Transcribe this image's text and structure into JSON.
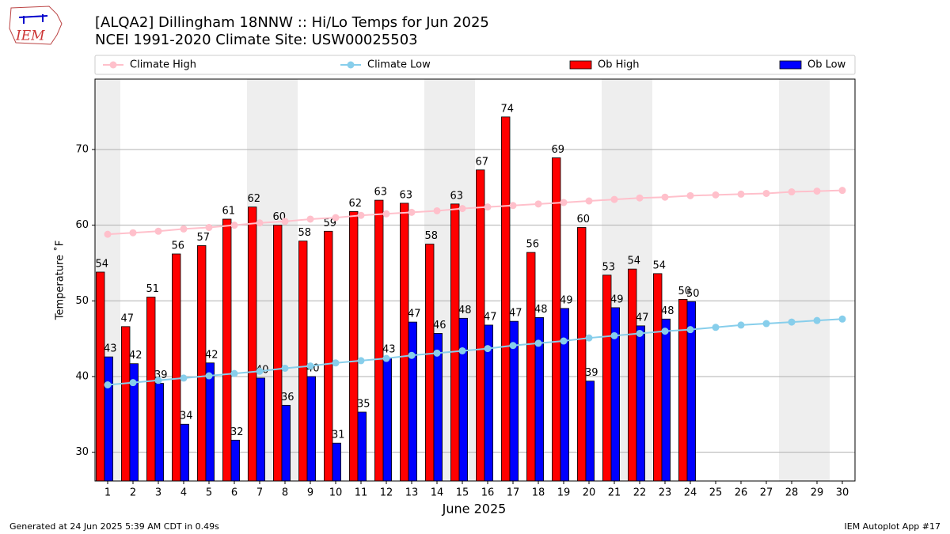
{
  "chart_data": {
    "type": "bar",
    "title": "[ALQA2] Dillingham 18NNW :: Hi/Lo Temps for Jun 2025",
    "subtitle": "NCEI 1991-2020 Climate Site: USW00025503",
    "xlabel": "June 2025",
    "ylabel": "Temperature ˚F",
    "logo": "IEM",
    "footer_left": "Generated at 24 Jun 2025 5:39 AM CDT in 0.49s",
    "footer_right": "IEM Autoplot App #17",
    "categories": [
      "1",
      "2",
      "3",
      "4",
      "5",
      "6",
      "7",
      "8",
      "9",
      "10",
      "11",
      "12",
      "13",
      "14",
      "15",
      "16",
      "17",
      "18",
      "19",
      "20",
      "21",
      "22",
      "23",
      "24",
      "25",
      "26",
      "27",
      "28",
      "29",
      "30"
    ],
    "ylim": [
      26.2,
      79.3
    ],
    "yticks": [
      30,
      40,
      50,
      60,
      70
    ],
    "grid": true,
    "series": [
      {
        "name": "Climate High",
        "type": "line",
        "color": "#ffc0cb",
        "values": [
          58.8,
          59.0,
          59.2,
          59.5,
          59.7,
          60.0,
          60.3,
          60.5,
          60.8,
          61.0,
          61.3,
          61.5,
          61.7,
          61.9,
          62.2,
          62.4,
          62.6,
          62.8,
          63.0,
          63.2,
          63.4,
          63.6,
          63.7,
          63.9,
          64.0,
          64.1,
          64.2,
          64.4,
          64.5,
          64.6
        ]
      },
      {
        "name": "Climate Low",
        "type": "line",
        "color": "#87ceeb",
        "values": [
          38.9,
          39.2,
          39.5,
          39.8,
          40.1,
          40.4,
          40.7,
          41.1,
          41.4,
          41.8,
          42.1,
          42.4,
          42.8,
          43.1,
          43.4,
          43.7,
          44.1,
          44.4,
          44.7,
          45.1,
          45.4,
          45.7,
          46.0,
          46.2,
          46.5,
          46.8,
          47.0,
          47.2,
          47.4,
          47.6
        ]
      },
      {
        "name": "Ob High",
        "type": "bar",
        "color": "#ff0000",
        "values": [
          53.8,
          46.6,
          50.5,
          56.2,
          57.3,
          60.8,
          62.4,
          60.0,
          57.9,
          59.2,
          61.8,
          63.3,
          62.9,
          57.5,
          62.8,
          67.3,
          74.3,
          56.4,
          68.9,
          59.7,
          53.4,
          54.2,
          53.6,
          50.2,
          null,
          null,
          null,
          null,
          null,
          null
        ],
        "value_labels": [
          "54",
          "47",
          "51",
          "56",
          "57",
          "61",
          "62",
          "60",
          "58",
          "59",
          "62",
          "63",
          "63",
          "58",
          "63",
          "67",
          "74",
          "56",
          "69",
          "60",
          "53",
          "54",
          "54",
          "50",
          null,
          null,
          null,
          null,
          null,
          null
        ]
      },
      {
        "name": "Ob Low",
        "type": "bar",
        "color": "#0000ff",
        "values": [
          42.6,
          41.7,
          39.1,
          33.7,
          41.8,
          31.6,
          39.8,
          36.2,
          40.0,
          31.2,
          35.3,
          42.5,
          47.2,
          45.7,
          47.7,
          46.8,
          47.3,
          47.8,
          49.0,
          39.4,
          49.1,
          46.7,
          47.6,
          49.9,
          null,
          null,
          null,
          null,
          null,
          null
        ],
        "value_labels": [
          "43",
          "42",
          "39",
          "34",
          "42",
          "32",
          "40",
          "36",
          "40",
          "31",
          "35",
          "43",
          "47",
          "46",
          "48",
          "47",
          "47",
          "48",
          "49",
          "39",
          "49",
          "47",
          "48",
          "50",
          null,
          null,
          null,
          null,
          null,
          null
        ]
      }
    ]
  }
}
